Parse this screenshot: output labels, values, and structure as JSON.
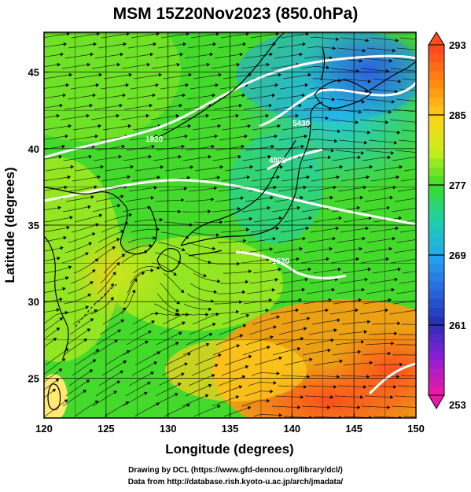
{
  "title": "MSM 15Z20Nov2023 (850.0hPa)",
  "x_axis": {
    "label": "Longitude (degrees)",
    "ticks": [
      "120",
      "125",
      "130",
      "135",
      "140",
      "145",
      "150"
    ]
  },
  "y_axis": {
    "label": "Latitude  (degrees)",
    "ticks": [
      "25",
      "30",
      "35",
      "40",
      "45"
    ]
  },
  "colorbar": {
    "ticks": [
      "293",
      "285",
      "277",
      "269",
      "261",
      "253"
    ],
    "colors": [
      "#ff4a1e",
      "#ff8a10",
      "#ffd21a",
      "#c8ee1e",
      "#38dc2a",
      "#1fd0a8",
      "#22aaee",
      "#2a6ade",
      "#2430b4",
      "#8a1ed8",
      "#e61aa6"
    ]
  },
  "contour_labels": [
    "5430",
    "4800",
    "1920",
    "1520"
  ],
  "footer": {
    "line1": "Drawing by DCL (https://www.gfd-dennou.org/library/dcl/)",
    "line2": "Data from http://database.rish.kyoto-u.ac.jp/arch/jmadata/"
  },
  "chart_data": {
    "type": "heatmap",
    "variable": "temperature",
    "level": "850.0hPa",
    "xlim": [
      120,
      150
    ],
    "ylim": [
      22.4,
      47.6
    ],
    "colorbar_range": [
      253,
      293
    ],
    "colorbar_ticks": [
      293,
      285,
      277,
      269,
      261,
      253
    ],
    "overlays": [
      "streamlines",
      "height contours",
      "coastlines",
      "lat/lon grid"
    ],
    "grid": true
  }
}
